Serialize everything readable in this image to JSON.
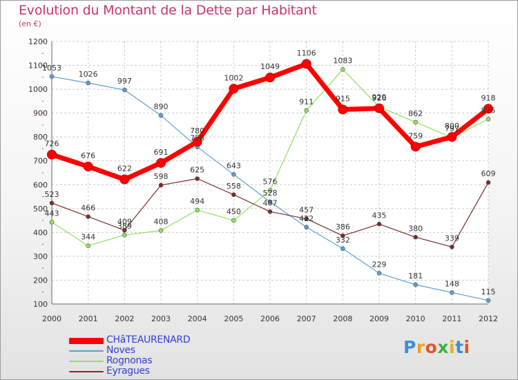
{
  "title": "Evolution du Montant de la Dette par Habitant",
  "unit_label": "(en €)",
  "logo": {
    "text": "Proxiti",
    "letter_colors": [
      "#3a8fd8",
      "#f0a020",
      "#e05528",
      "#3ab04a",
      "#e0b020",
      "#3a8fd8",
      "#e05528"
    ]
  },
  "chart_data": {
    "type": "line",
    "x": [
      "2000",
      "2001",
      "2002",
      "2003",
      "2004",
      "2005",
      "2006",
      "2007",
      "2008",
      "2009",
      "2010",
      "2011",
      "2012"
    ],
    "ylim": [
      100,
      1200
    ],
    "yticks": [
      "100",
      "200",
      "300",
      "400",
      "500",
      "600",
      "700",
      "800",
      "900",
      "1000",
      "1100",
      "1200"
    ],
    "grid": true,
    "legend_position": "bottom-left",
    "series": [
      {
        "name": "CHâTEAURENARD",
        "color": "#ff0000",
        "width": 7,
        "marker": 6.5,
        "values": [
          726,
          676,
          622,
          691,
          780,
          1002,
          1049,
          1106,
          915,
          920,
          759,
          800,
          918
        ],
        "labels": [
          "726",
          "676",
          "622",
          "691",
          "780",
          "1002",
          "1049",
          "1106",
          "915",
          "920",
          "759",
          "800",
          "918"
        ]
      },
      {
        "name": "Noves",
        "color": "#5c9ed2",
        "width": 1.2,
        "marker": 3,
        "values": [
          1053,
          1026,
          997,
          890,
          758,
          643,
          528,
          422,
          332,
          229,
          181,
          148,
          115
        ],
        "labels": [
          "1053",
          "1026",
          "997",
          "890",
          "758",
          "643",
          "528",
          "422",
          "332",
          "229",
          "181",
          "148",
          "115"
        ]
      },
      {
        "name": "Rognonas",
        "color": "#8fe05c",
        "width": 1.2,
        "marker": 3,
        "values": [
          443,
          344,
          389,
          408,
          494,
          450,
          576,
          911,
          1083,
          926,
          862,
          797,
          875
        ],
        "labels": [
          "443",
          "344",
          "389",
          "408",
          "494",
          "450",
          "576",
          "911",
          "1083",
          "926",
          "862",
          "797",
          "875"
        ]
      },
      {
        "name": "Eyragues",
        "color": "#7a2a2a",
        "width": 1.2,
        "marker": 3,
        "values": [
          523,
          466,
          409,
          598,
          625,
          558,
          487,
          457,
          386,
          435,
          380,
          339,
          609
        ],
        "labels": [
          "523",
          "466",
          "409",
          "598",
          "625",
          "558",
          "487",
          "457",
          "386",
          "435",
          "380",
          "339",
          "609"
        ]
      }
    ]
  }
}
